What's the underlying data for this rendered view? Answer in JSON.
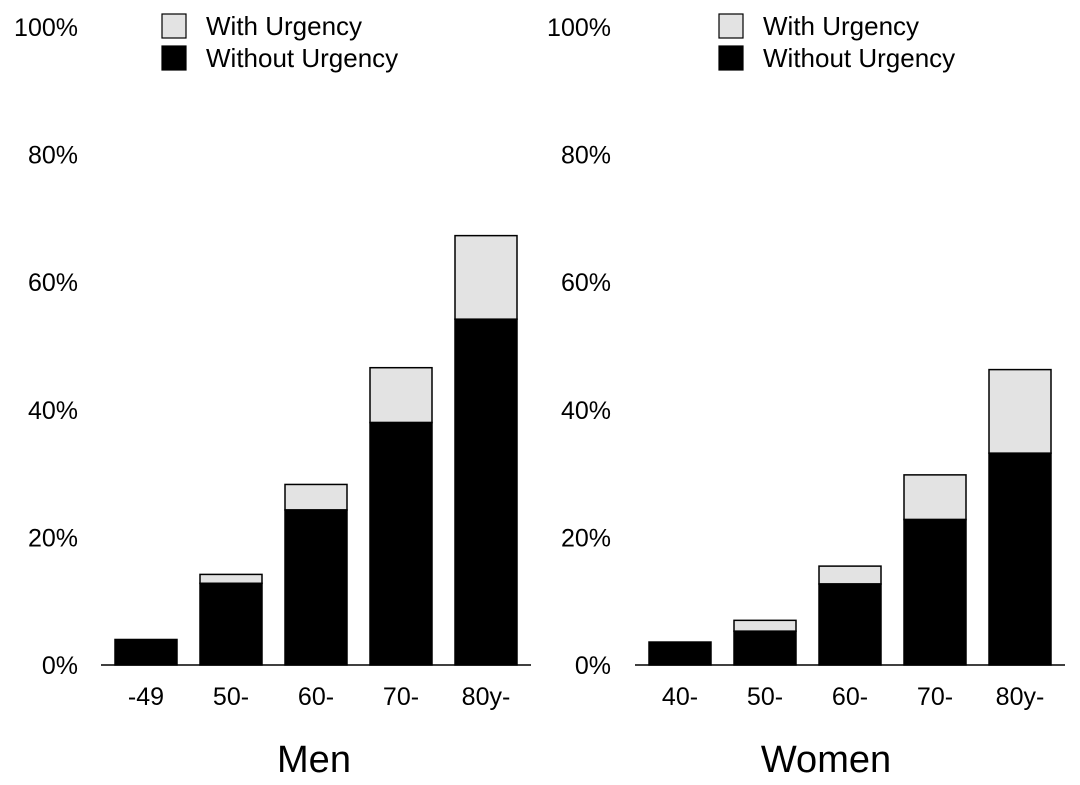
{
  "chart_data": [
    {
      "type": "bar",
      "stacked": true,
      "title": "Men",
      "categories": [
        "-49",
        "50-",
        "60-",
        "70-",
        "80y-"
      ],
      "series": [
        {
          "name": "Without Urgency",
          "values": [
            4.0,
            12.8,
            24.3,
            38.0,
            54.2
          ]
        },
        {
          "name": "With Urgency",
          "values": [
            0.0,
            1.4,
            4.0,
            8.6,
            13.1
          ]
        }
      ],
      "ylim": [
        0,
        100
      ],
      "yticks": [
        "0%",
        "20%",
        "40%",
        "60%",
        "80%",
        "100%"
      ],
      "legend": [
        {
          "label": "With Urgency",
          "color": "#e3e3e3"
        },
        {
          "label": "Without Urgency",
          "color": "#000000"
        }
      ],
      "legend_position": "top",
      "grid": false
    },
    {
      "type": "bar",
      "stacked": true,
      "title": "Women",
      "categories": [
        "40-",
        "50-",
        "60-",
        "70-",
        "80y-"
      ],
      "series": [
        {
          "name": "Without Urgency",
          "values": [
            3.6,
            5.3,
            12.7,
            22.8,
            33.2
          ]
        },
        {
          "name": "With Urgency",
          "values": [
            0.0,
            1.7,
            2.8,
            7.0,
            13.1
          ]
        }
      ],
      "ylim": [
        0,
        100
      ],
      "yticks": [
        "0%",
        "20%",
        "40%",
        "60%",
        "80%",
        "100%"
      ],
      "legend": [
        {
          "label": "With Urgency",
          "color": "#e3e3e3"
        },
        {
          "label": "Without Urgency",
          "color": "#000000"
        }
      ],
      "legend_position": "top",
      "grid": false
    }
  ],
  "colors": {
    "without_urgency": "#000000",
    "with_urgency": "#e3e3e3",
    "axis": "#000000"
  }
}
